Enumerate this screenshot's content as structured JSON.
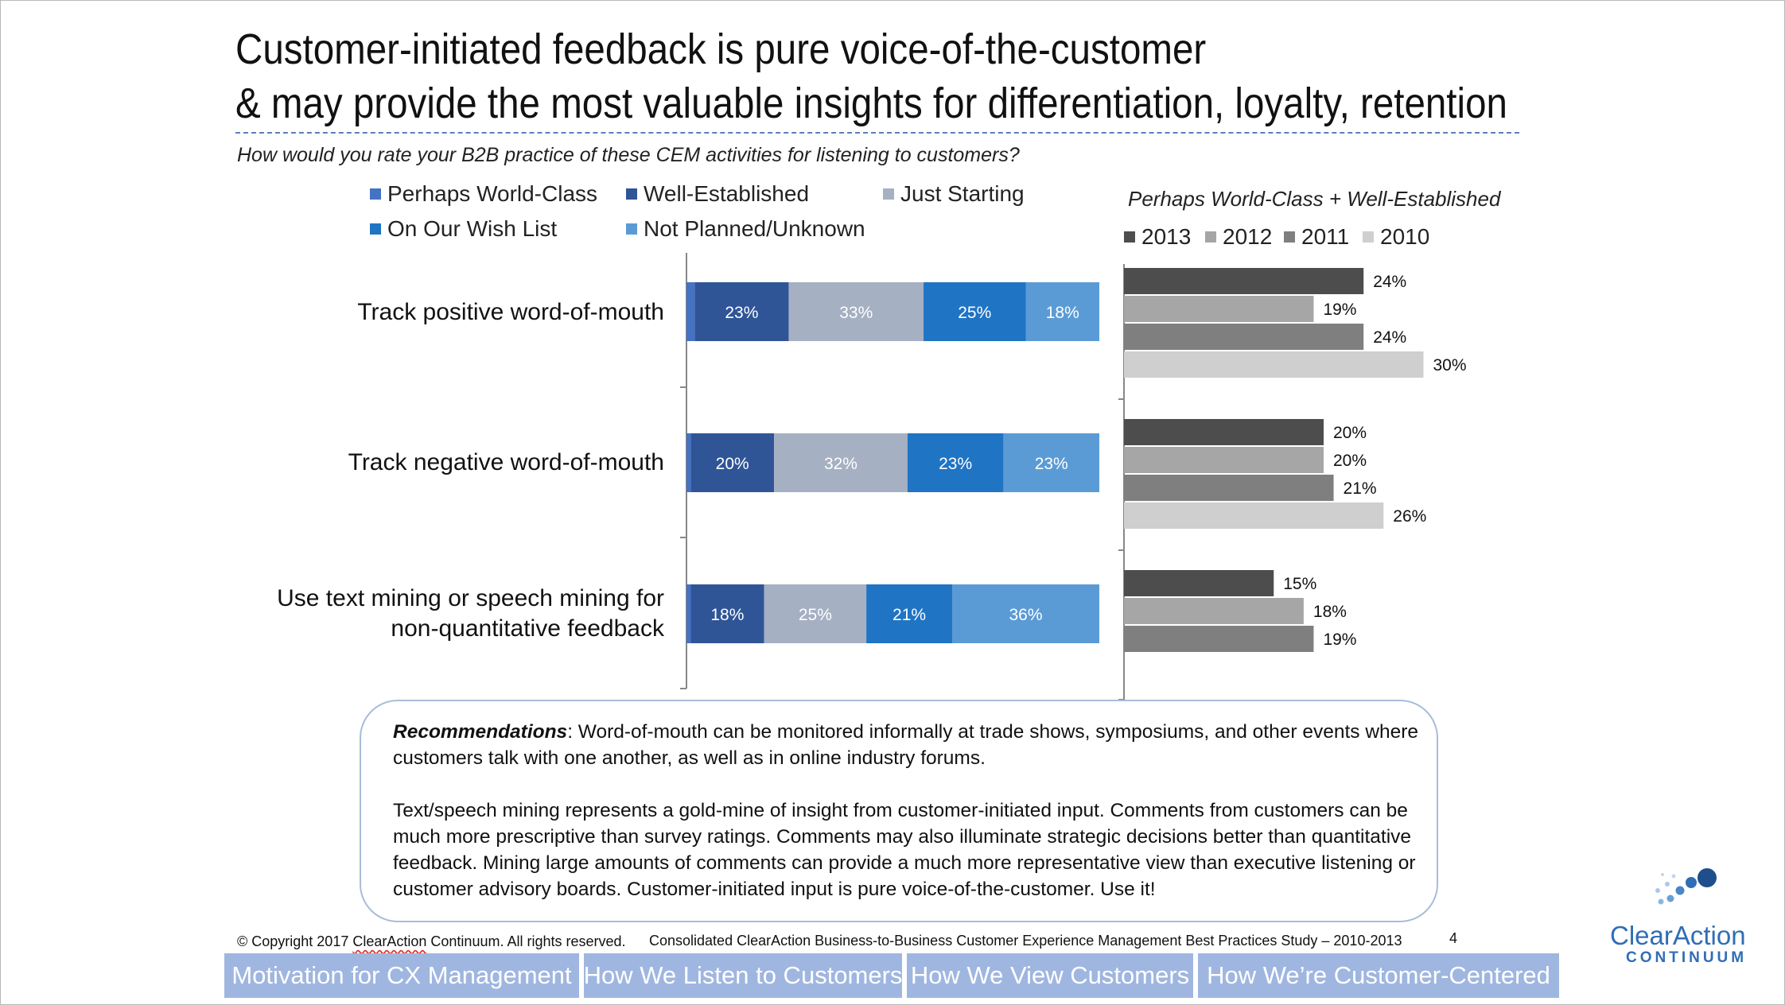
{
  "title_line1": "Customer-initiated feedback is pure voice-of-the-customer",
  "title_line2": "& may provide the most valuable insights for differentiation, loyalty, retention",
  "question": "How would you rate your B2B practice of these CEM activities for listening to customers?",
  "chart_data": [
    {
      "type": "bar",
      "orientation": "horizontal-stacked",
      "categories": [
        "Track positive word-of-mouth",
        "Track negative word-of-mouth",
        "Use text mining or speech mining for non-quantitative feedback"
      ],
      "series": [
        {
          "name": "Perhaps World-Class",
          "values": [
            2,
            1,
            1
          ],
          "color": "#4472c4"
        },
        {
          "name": "Well-Established",
          "values": [
            23,
            20,
            18
          ],
          "color": "#2f5597"
        },
        {
          "name": "Just Starting",
          "values": [
            33,
            32,
            25
          ],
          "color": "#a6b0c3"
        },
        {
          "name": "On Our Wish List",
          "values": [
            25,
            23,
            21
          ],
          "color": "#1f74c4"
        },
        {
          "name": "Not Planned/Unknown",
          "values": [
            18,
            23,
            36
          ],
          "color": "#5b9bd5"
        }
      ],
      "data_labels": [
        [
          "",
          "23%",
          "33%",
          "25%",
          "18%"
        ],
        [
          "",
          "20%",
          "32%",
          "23%",
          "23%"
        ],
        [
          "",
          "18%",
          "25%",
          "21%",
          "36%"
        ]
      ],
      "legend_placement": "top",
      "grid": false
    },
    {
      "type": "bar",
      "orientation": "horizontal-grouped",
      "title": "Perhaps World-Class + Well-Established",
      "categories": [
        "Track positive word-of-mouth",
        "Track negative word-of-mouth",
        "Use text mining or speech mining for non-quantitative feedback"
      ],
      "series": [
        {
          "name": "2013",
          "values": [
            24,
            20,
            15
          ],
          "color": "#4d4d4d"
        },
        {
          "name": "2012",
          "values": [
            19,
            20,
            18
          ],
          "color": "#a6a6a6"
        },
        {
          "name": "2011",
          "values": [
            24,
            21,
            19
          ],
          "color": "#7f7f7f"
        },
        {
          "name": "2010",
          "values": [
            30,
            26,
            null
          ],
          "color": "#cfcfcf"
        }
      ],
      "legend_placement": "top",
      "grid": false
    }
  ],
  "recommendations": {
    "label": "Recommendations",
    "para1": ":  Word-of-mouth can be monitored informally at trade shows, symposiums, and other events where customers talk with one another, as well as in online industry forums.",
    "para2": "Text/speech mining represents a gold-mine of insight from customer-initiated input. Comments from customers can be much more prescriptive than survey ratings. Comments may also illuminate strategic decisions better than quantitative feedback. Mining large amounts of comments can provide a much more representative view than executive listening or customer advisory boards. Customer-initiated input is pure voice-of-the-customer. Use it!"
  },
  "footer": {
    "copyright_pre": "© Copyright 2017 ",
    "copyright_brand": "ClearAction",
    "copyright_post": " Continuum. All rights reserved.",
    "study": "Consolidated ClearAction Business-to-Business Customer Experience Management Best Practices Study – 2010-2013",
    "page": "4"
  },
  "tabs": [
    "Motivation for CX Management",
    "How We Listen to Customers",
    "How We View Customers",
    "How We’re Customer-Centered"
  ],
  "logo": {
    "name": "ClearAction",
    "sub": "CONTINUUM",
    "color": "#2f6eb5"
  }
}
